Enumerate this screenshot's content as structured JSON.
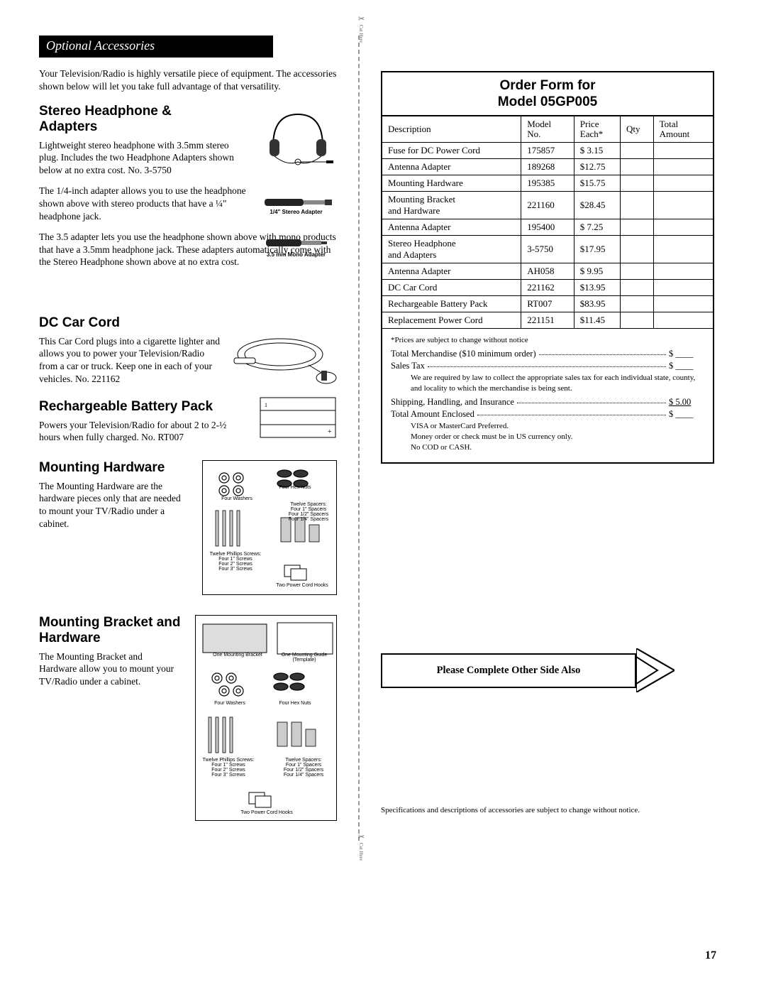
{
  "header": "Optional Accessories",
  "intro": "Your Television/Radio is highly versatile piece of equipment. The accessories shown below will let you take full advantage of that versatility.",
  "sections": {
    "headphone": {
      "title": "Stereo Headphone & Adapters",
      "p1": "Lightweight stereo headphone with 3.5mm stereo plug. Includes the two Headphone Adapters shown below at no extra cost. No. 3-5750",
      "p2": "The 1/4-inch adapter allows you to use the headphone shown above with stereo products that have a ¼\" headphone jack.",
      "p3": "The 3.5 adapter lets you use the headphone shown above with mono products that have a 3.5mm headphone jack. These adapters automatically come with the Stereo Headphone shown above at no extra cost.",
      "cap1": "1/4\" Stereo Adapter",
      "cap2": "3.5 mm Mono Adapter"
    },
    "carcord": {
      "title": "DC Car Cord",
      "p": "This Car Cord plugs into a cigarette lighter and allows you to power your Television/Radio from a car or truck. Keep one in each of your vehicles. No. 221162"
    },
    "battery": {
      "title": "Rechargeable Battery Pack",
      "p": "Powers your Television/Radio for about 2 to 2-½ hours when fully charged. No. RT007"
    },
    "hw": {
      "title": "Mounting Hardware",
      "p": "The Mounting Hardware are the hardware pieces only that are needed to mount your TV/Radio under a cabinet."
    },
    "bracket": {
      "title": "Mounting Bracket and Hardware",
      "p": "The Mounting Bracket and Hardware allow you to mount your TV/Radio under a cabinet."
    }
  },
  "hwLabels": {
    "washers": "Four Washers",
    "nuts": "Four Hex Nuts",
    "screws": "Twelve Phillips Screws:\nFour 1\" Screws\nFour 2\" Screws\nFour 3\" Screws",
    "spacers": "Twelve Spacers:\nFour 1\" Spacers\nFour 1/2\" Spacers\nFour 1/4\" Spacers",
    "hooks": "Two Power Cord Hooks",
    "bracket": "One Mounting Bracket",
    "guide": "One Mounting Guide (Template)"
  },
  "order": {
    "title1": "Order Form for",
    "title2": "Model 05GP005",
    "cols": {
      "desc": "Description",
      "model": "Model\nNo.",
      "price": "Price\nEach*",
      "qty": "Qty",
      "total": "Total\nAmount"
    },
    "rows": [
      {
        "desc": "Fuse for DC Power Cord",
        "model": "175857",
        "price": "$  3.15"
      },
      {
        "desc": "Antenna Adapter",
        "model": "189268",
        "price": "$12.75"
      },
      {
        "desc": "Mounting Hardware",
        "model": "195385",
        "price": "$15.75"
      },
      {
        "desc": "Mounting Bracket and Hardware",
        "model": "221160",
        "price": "$28.45"
      },
      {
        "desc": "Antenna Adapter",
        "model": "195400",
        "price": "$ 7.25"
      },
      {
        "desc": "Stereo Headphone and Adapters",
        "model": "3-5750",
        "price": "$17.95"
      },
      {
        "desc": "Antenna Adapter",
        "model": "AH058",
        "price": "$ 9.95"
      },
      {
        "desc": "DC Car Cord",
        "model": "221162",
        "price": "$13.95"
      },
      {
        "desc": "Rechargeable Battery Pack",
        "model": "RT007",
        "price": "$83.95"
      },
      {
        "desc": "Replacement Power Cord",
        "model": "221151",
        "price": "$11.45"
      }
    ],
    "footer": {
      "note": "*Prices are subject to change without notice",
      "merch": "Total Merchandise ($10 minimum order)",
      "tax": "Sales Tax",
      "taxSub": "We are required by law to collect the appropriate sales tax for each individual state, county, and locality to which the merchandise is being sent.",
      "ship": "Shipping, Handling, and Insurance",
      "shipAmt": "$ 5.00",
      "total": "Total Amount Enclosed",
      "paySub": "VISA or MasterCard Preferred.\nMoney order or check must be in US currency only.\nNo COD or CASH.",
      "blank": "$ ____"
    }
  },
  "arrowText": "Please Complete Other Side Also",
  "footnote": "Specifications and descriptions of accessories are subject to change without notice.",
  "pageNum": "17",
  "cutHere": "Cut Here"
}
